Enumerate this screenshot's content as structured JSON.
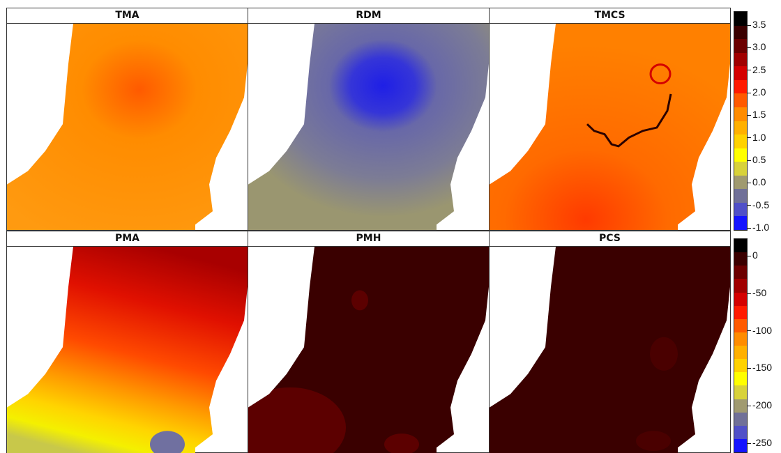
{
  "panels_top": [
    "TMA",
    "RDM",
    "TMCS"
  ],
  "panels_bottom": [
    "PMA",
    "PMH",
    "PCS"
  ],
  "colorbar_top": {
    "ticks": [
      "3.5",
      "3.0",
      "2.5",
      "2.0",
      "1.5",
      "1.0",
      "0.5",
      "0.0",
      "-0.5",
      "-1.0"
    ],
    "colors": [
      "#000000",
      "#3a0000",
      "#6b0000",
      "#a00000",
      "#d40000",
      "#ff1a00",
      "#ff5a00",
      "#ff8c00",
      "#ffb000",
      "#ffd200",
      "#ffff00",
      "#d8d23a",
      "#a09a70",
      "#707098",
      "#5050c8",
      "#1414ff"
    ]
  },
  "colorbar_bottom": {
    "ticks": [
      "0",
      "-50",
      "-100",
      "-150",
      "-200",
      "-250"
    ],
    "colors": [
      "#000000",
      "#3a0000",
      "#6b0000",
      "#a00000",
      "#d40000",
      "#ff1a00",
      "#ff5a00",
      "#ff8c00",
      "#ffb000",
      "#ffd200",
      "#ffff00",
      "#d8d23a",
      "#a09a70",
      "#707098",
      "#5050c8",
      "#1414ff"
    ]
  }
}
